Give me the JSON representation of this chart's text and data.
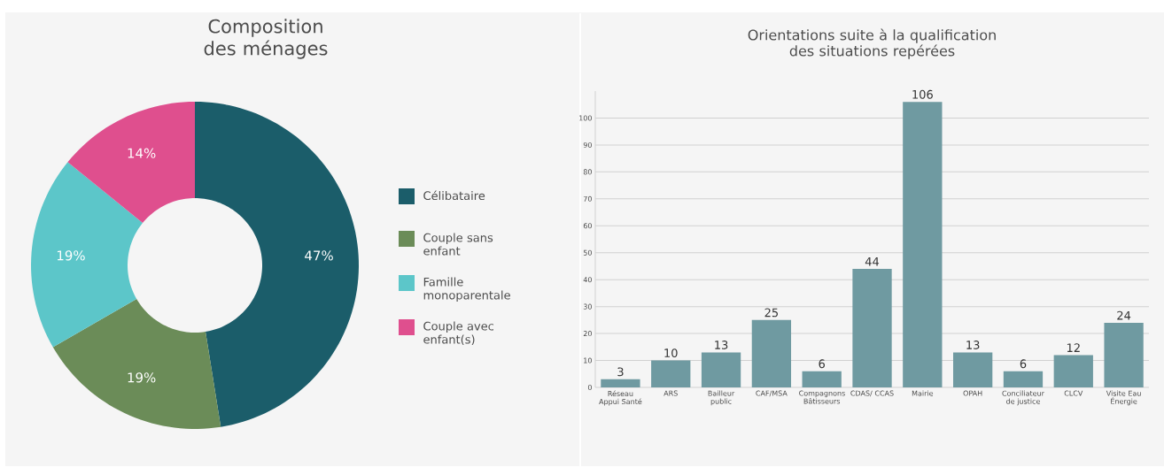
{
  "chart_data": [
    {
      "type": "donut",
      "title": "Composition des ménages",
      "categories": [
        "Célibataire",
        "Couple sans enfant",
        "Famille monoparentale",
        "Couple avec enfant(s)"
      ],
      "values": [
        47,
        19,
        19,
        14
      ],
      "colors": [
        "#1b5d6a",
        "#6b8c58",
        "#5cc6c9",
        "#df4f8e"
      ],
      "value_labels": [
        "47%",
        "19%",
        "19%",
        "14%"
      ],
      "legend": "right"
    },
    {
      "type": "bar",
      "title": "Orientations suite à la qualification des situations repérées",
      "categories": [
        "Réseau Appui Santé",
        "ARS",
        "Bailleur public",
        "CAF/MSA",
        "Compagnons Bâtisseurs",
        "CDAS/ CCAS",
        "Mairie",
        "OPAH",
        "Conciliateur de justice",
        "CLCV",
        "Visite Eau Énergie"
      ],
      "values": [
        3,
        10,
        13,
        25,
        6,
        44,
        106,
        13,
        6,
        12,
        24
      ],
      "color": "#6f9aa1",
      "ylim": [
        0,
        110
      ],
      "yticks": [
        0,
        10,
        20,
        30,
        40,
        50,
        60,
        70,
        80,
        90,
        100
      ],
      "grid": "y",
      "data_labels": true
    }
  ]
}
